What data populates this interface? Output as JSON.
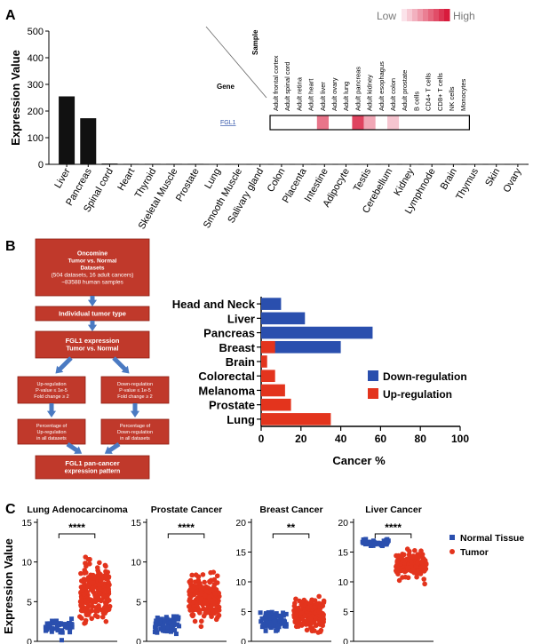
{
  "panels": {
    "a": "A",
    "b": "B",
    "c": "C"
  },
  "chart_data": [
    {
      "type": "bar",
      "panel": "A",
      "ylabel": "Expression Value",
      "ylim": [
        0,
        500
      ],
      "yticks": [
        0,
        100,
        200,
        300,
        400,
        500
      ],
      "categories": [
        "Liver",
        "Pancreas",
        "Spinal cord",
        "Heart",
        "Thyroid",
        "Skeletal Muscle",
        "Prostate",
        "Lung",
        "Smooth Muscle",
        "Salivary gland",
        "Colon",
        "Placenta",
        "Intestine",
        "Adipocyte",
        "Testis",
        "Cerebellum",
        "Kidney",
        "Lymphnode",
        "Brain",
        "Thymus",
        "Skin",
        "Ovary"
      ],
      "values": [
        255,
        173,
        3,
        2,
        2,
        2,
        2,
        1,
        1,
        1,
        1,
        1,
        1,
        1,
        1,
        1,
        1,
        1,
        1,
        1,
        1,
        1
      ],
      "bar_color": "#111111"
    },
    {
      "type": "heatmap",
      "panel": "A-inset",
      "legend_low": "Low",
      "legend_high": "High",
      "col_header": "Sample",
      "row_header": "Gene",
      "row_label": "FGL1",
      "colors": {
        "low": "#fbe3ea",
        "high": "#d81b3c"
      },
      "samples": [
        "Adult frontal cortex",
        "Adult spinal cord",
        "Adult retina",
        "Adult heart",
        "Adult liver",
        "Adult ovary",
        "Adult lung",
        "Adult pancreas",
        "Adult kidney",
        "Adult esophagus",
        "Adult colon",
        "Adult prostate",
        "B cells",
        "CD4+ T cells",
        "CD8+ T cells",
        "NK cells",
        "Monocytes"
      ],
      "values": [
        0,
        0,
        0,
        0,
        0.55,
        0,
        0,
        0.8,
        0.3,
        0,
        0.15,
        0,
        0,
        0,
        0,
        0,
        0
      ]
    },
    {
      "type": "bar",
      "orientation": "horizontal",
      "panel": "B",
      "xlabel": "Cancer %",
      "xlim": [
        0,
        100
      ],
      "xticks": [
        0,
        20,
        40,
        60,
        80,
        100
      ],
      "categories": [
        "Head and Neck",
        "Liver",
        "Pancreas",
        "Breast",
        "Brain",
        "Colorectal",
        "Melanoma",
        "Prostate",
        "Lung"
      ],
      "series": [
        {
          "name": "Down-regulation",
          "color": "#2a4fae",
          "values": [
            10,
            22,
            56,
            40,
            0,
            0,
            0,
            0,
            0
          ]
        },
        {
          "name": "Up-regulation",
          "color": "#e3341d",
          "values": [
            0,
            0,
            0,
            7,
            3,
            7,
            12,
            15,
            35
          ]
        }
      ],
      "legend_position": "right"
    },
    {
      "type": "scatter",
      "panel": "C",
      "ylabel": "Expression Value",
      "legend": [
        {
          "name": "Normal Tissue",
          "color": "#2a4fae"
        },
        {
          "name": "Tumor",
          "color": "#e3341d"
        }
      ],
      "subplots": [
        {
          "title": "Lung Adenocarcinoma",
          "ylim": [
            0,
            15
          ],
          "yticks": [
            0,
            5,
            10,
            15
          ],
          "sig": "****",
          "normal": {
            "n": 45,
            "center": 1.8,
            "spread": 1.3,
            "min": 0,
            "max": 5.5
          },
          "tumor": {
            "n": 210,
            "center": 6,
            "spread": 4.5,
            "min": 0,
            "max": 15.5
          }
        },
        {
          "title": "Prostate Cancer",
          "ylim": [
            0,
            15
          ],
          "yticks": [
            0,
            5,
            10,
            15
          ],
          "sig": "****",
          "normal": {
            "n": 55,
            "center": 2.2,
            "spread": 1.5,
            "min": 0,
            "max": 6.5
          },
          "tumor": {
            "n": 210,
            "center": 5.5,
            "spread": 3.5,
            "min": 0,
            "max": 12
          }
        },
        {
          "title": "Breast Cancer",
          "ylim": [
            0,
            20
          ],
          "yticks": [
            0,
            5,
            10,
            15,
            20
          ],
          "sig": "**",
          "normal": {
            "n": 80,
            "center": 3.5,
            "spread": 2.2,
            "min": 0,
            "max": 10
          },
          "tumor": {
            "n": 210,
            "center": 4.5,
            "spread": 3.5,
            "min": 0,
            "max": 16
          }
        },
        {
          "title": "Liver Cancer",
          "ylim": [
            0,
            20
          ],
          "yticks": [
            0,
            5,
            10,
            15,
            20
          ],
          "sig": "****",
          "normal": {
            "n": 50,
            "center": 16.5,
            "spread": 0.9,
            "min": 15,
            "max": 18.5
          },
          "tumor": {
            "n": 150,
            "center": 13,
            "spread": 3.2,
            "min": 5.5,
            "max": 18
          }
        }
      ]
    }
  ],
  "flowchart": {
    "box_color": "#c0392b",
    "arrow_color": "#4a7ac2",
    "top": [
      "Oncomine",
      "Tumor vs. Normal",
      "Datasets",
      "(504 datasets, 16 adult cancers)",
      "~83588 human samples"
    ],
    "step2": "Individual tumor type",
    "step3": [
      "FGL1 expression",
      "Tumor vs. Normal"
    ],
    "left_head": "Up-regulation",
    "left_sub": [
      "P-value ≤ 1e-5",
      "Fold change ≥ 2"
    ],
    "right_head": "Down-regulation",
    "right_sub": [
      "P-value ≤ 1e-5",
      "Fold change ≥ 2"
    ],
    "left_low": [
      "Percentage of",
      "Up-regulation",
      "in all datasets"
    ],
    "right_low": [
      "Percentage of",
      "Down-regulation",
      "in all datasets"
    ],
    "final": [
      "FGL1 pan-cancer",
      "expression pattern"
    ]
  }
}
